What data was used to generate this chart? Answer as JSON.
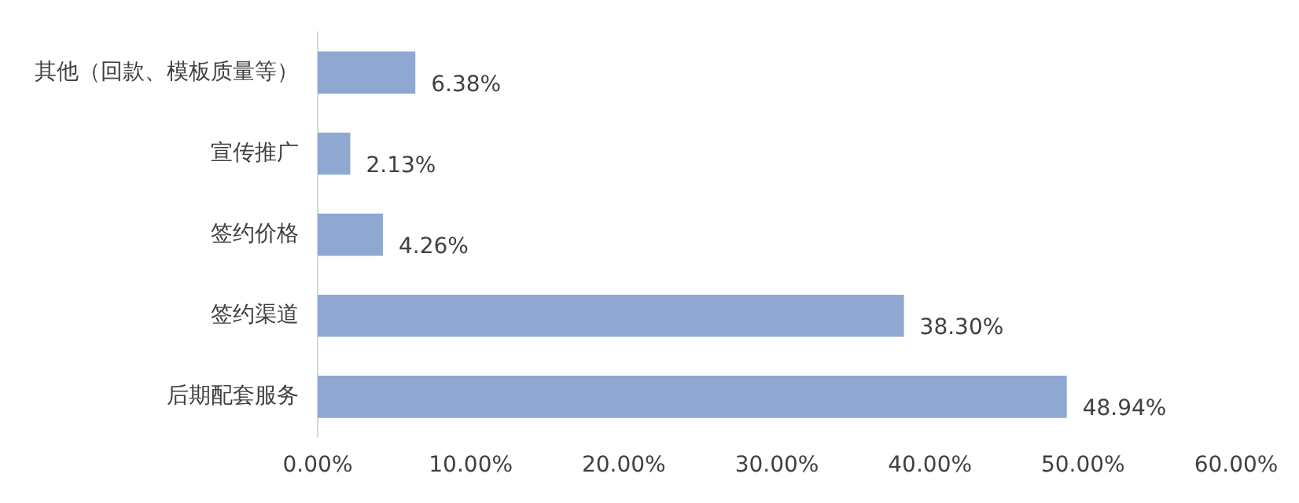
{
  "chart_data": {
    "type": "bar",
    "orientation": "horizontal",
    "categories": [
      "其他（回款、模板质量等）",
      "宣传推广",
      "签约价格",
      "签约渠道",
      "后期配套服务"
    ],
    "values": [
      6.38,
      2.13,
      4.26,
      38.3,
      48.94
    ],
    "value_labels": [
      "6.38%",
      "2.13%",
      "4.26%",
      "38.30%",
      "48.94%"
    ],
    "color": "#8fa8d2",
    "xlim": [
      0,
      60
    ],
    "xticks": [
      {
        "value": 0,
        "label": "0.00%"
      },
      {
        "value": 10,
        "label": "10.00%"
      },
      {
        "value": 20,
        "label": "20.00%"
      },
      {
        "value": 30,
        "label": "30.00%"
      },
      {
        "value": 40,
        "label": "40.00%"
      },
      {
        "value": 50,
        "label": "50.00%"
      },
      {
        "value": 60,
        "label": "60.00%"
      }
    ],
    "grid": false,
    "legend": false
  }
}
